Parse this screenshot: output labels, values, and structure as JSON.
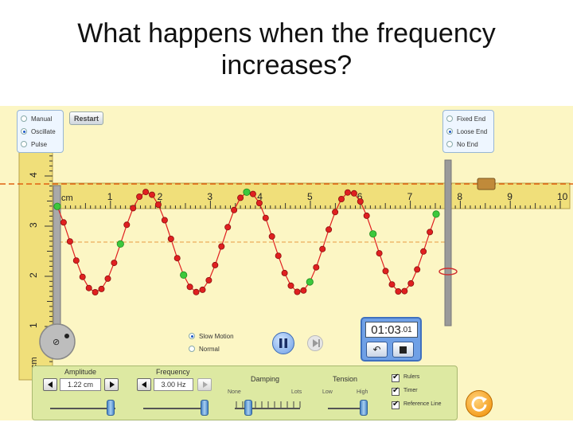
{
  "slide": {
    "title_line1": "What happens when the frequency",
    "title_line2": "increases?"
  },
  "mode_panel": {
    "options": [
      {
        "label": "Manual",
        "selected": false
      },
      {
        "label": "Oscillate",
        "selected": true
      },
      {
        "label": "Pulse",
        "selected": false
      }
    ]
  },
  "restart_label": "Restart",
  "end_panel": {
    "options": [
      {
        "label": "Fixed End",
        "selected": false
      },
      {
        "label": "Loose End",
        "selected": true
      },
      {
        "label": "No End",
        "selected": false
      }
    ]
  },
  "ruler_horizontal": {
    "unit": "cm",
    "ticks": [
      "1",
      "2",
      "3",
      "4",
      "5",
      "6",
      "7",
      "8",
      "9",
      "10"
    ]
  },
  "ruler_vertical": {
    "unit": "cm",
    "ticks": [
      "4",
      "3",
      "2",
      "1"
    ]
  },
  "playback": {
    "options": [
      {
        "label": "Slow Motion",
        "selected": true
      },
      {
        "label": "Normal",
        "selected": false
      }
    ],
    "pause_icon": "pause-icon",
    "step_icon": "step-forward-icon"
  },
  "timer": {
    "time_main": "01:03",
    "time_fraction": ".01",
    "reset_icon": "undo-icon",
    "stop_icon": "stop-icon"
  },
  "controls": {
    "amplitude": {
      "label": "Amplitude",
      "value": "1.22 cm"
    },
    "frequency": {
      "label": "Frequency",
      "value": "3.00 Hz"
    },
    "damping": {
      "label": "Damping",
      "min_label": "None",
      "max_label": "Lots"
    },
    "tension": {
      "label": "Tension",
      "min_label": "Low",
      "max_label": "High"
    },
    "checkboxes": [
      {
        "label": "Rulers",
        "checked": true
      },
      {
        "label": "Timer",
        "checked": true
      },
      {
        "label": "Reference Line",
        "checked": true
      }
    ]
  },
  "reset_all_icon": "refresh-icon",
  "colors": {
    "bead_red": "#e02020",
    "bead_green": "#3cc83c",
    "ruler_yellow": "#f0df7a",
    "reference_line": "#e06010",
    "panel_green": "#dde9a2",
    "timer_blue": "#6fa0e6"
  }
}
